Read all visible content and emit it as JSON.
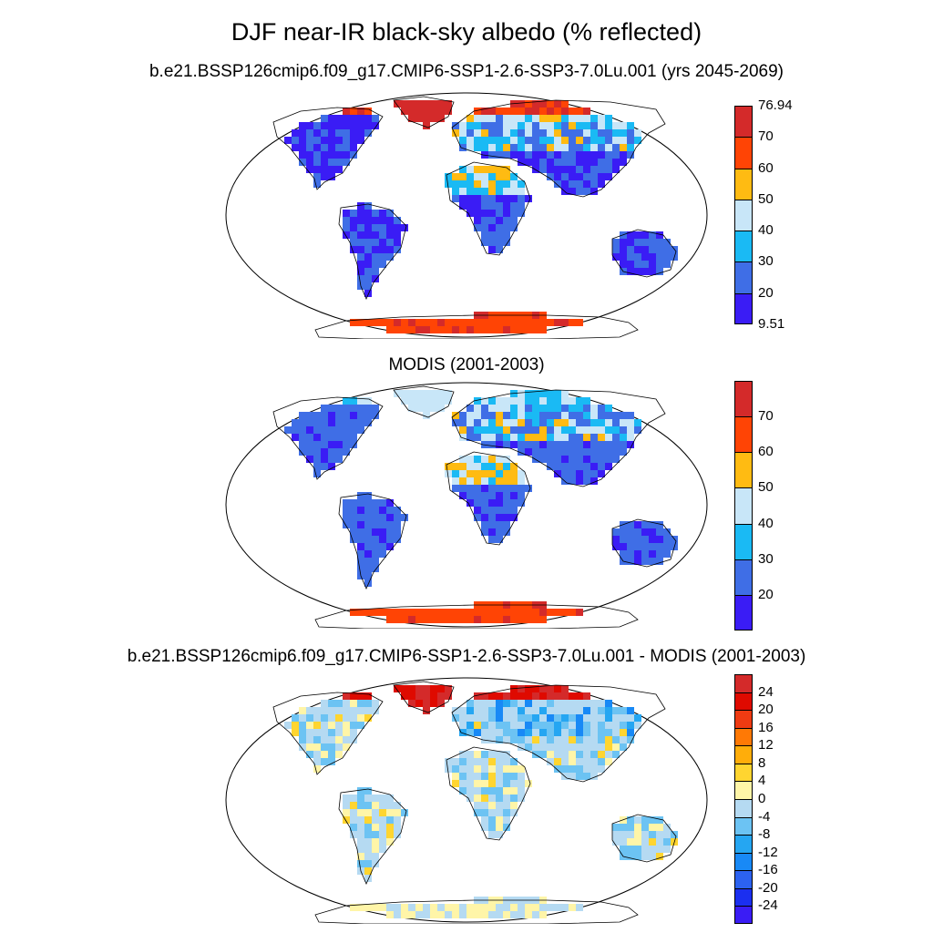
{
  "title": "DJF near-IR black-sky albedo (% reflected)",
  "panels": [
    {
      "subtitle": "b.e21.BSSP126cmip6.f09_g17.CMIP6-SSP1-2.6-SSP3-7.0Lu.001 (yrs 2045-2069)",
      "colorbar": {
        "colors": [
          "#3a1cf5",
          "#3f6ee6",
          "#1abaf4",
          "#c8e6f8",
          "#ffbb12",
          "#ff4405",
          "#d42a2a"
        ],
        "labels": [
          "76.94",
          "70",
          "60",
          "50",
          "40",
          "30",
          "20",
          "9.51"
        ]
      }
    },
    {
      "subtitle": "MODIS (2001-2003)",
      "colorbar": {
        "colors": [
          "#3a1cf5",
          "#3f6ee6",
          "#1abaf4",
          "#c8e6f8",
          "#ffbb12",
          "#ff4405",
          "#d42a2a"
        ],
        "labels": [
          "70",
          "60",
          "50",
          "40",
          "30",
          "20"
        ]
      }
    },
    {
      "subtitle": "b.e21.BSSP126cmip6.f09_g17.CMIP6-SSP1-2.6-SSP3-7.0Lu.001 - MODIS (2001-2003)",
      "colorbar": {
        "colors": [
          "#3a1cf5",
          "#1b2ff0",
          "#2c62f0",
          "#1889f6",
          "#25a6f2",
          "#6cc3f3",
          "#b5daf2",
          "#fff5a8",
          "#ffd530",
          "#ffad0a",
          "#ff7905",
          "#ef3b12",
          "#df0a00",
          "#d42a2a"
        ],
        "labels": [
          "24",
          "20",
          "16",
          "12",
          "8",
          "4",
          "0",
          "-4",
          "-8",
          "-12",
          "-16",
          "-20",
          "-24"
        ]
      }
    }
  ]
}
